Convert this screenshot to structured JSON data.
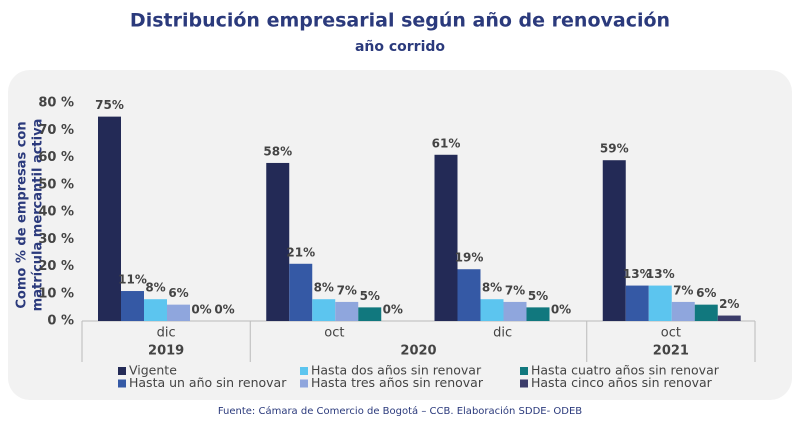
{
  "chart_data": {
    "type": "bar",
    "title": "Distribución empresarial según año de renovación",
    "subtitle": "año corrido",
    "y_label": [
      "Como % de empresas con",
      "matrícula mercantil activa"
    ],
    "groups": [
      {
        "name": "2019",
        "categories": [
          "dic"
        ]
      },
      {
        "name": "2020",
        "categories": [
          "oct",
          "dic"
        ]
      },
      {
        "name": "2021",
        "categories": [
          "oct"
        ]
      }
    ],
    "series": [
      {
        "name": "Vigente",
        "color": "#232a56",
        "values": [
          75,
          58,
          61,
          59
        ],
        "value_labels": [
          "75%",
          "58%",
          "61%",
          "59%"
        ]
      },
      {
        "name": "Hasta un año sin renovar",
        "color": "#3559a5",
        "values": [
          11,
          21,
          19,
          13
        ],
        "value_labels": [
          "11%",
          "21%",
          "19%",
          "13%"
        ]
      },
      {
        "name": "Hasta dos años sin renovar",
        "color": "#5cc5ef",
        "values": [
          8,
          8,
          8,
          13
        ],
        "value_labels": [
          "8%",
          "8%",
          "8%",
          "13%"
        ]
      },
      {
        "name": "Hasta tres años sin renovar",
        "color": "#8fa6dd",
        "values": [
          6,
          7,
          7,
          7
        ],
        "value_labels": [
          "6%",
          "7%",
          "7%",
          "7%"
        ]
      },
      {
        "name": "Hasta cuatro años sin renovar",
        "color": "#11787e",
        "values": [
          0,
          5,
          5,
          6
        ],
        "value_labels": [
          "0%",
          "5%",
          "5%",
          "6%"
        ]
      },
      {
        "name": "Hasta cinco años sin renovar",
        "color": "#3b3c6a",
        "values": [
          0,
          0,
          0,
          2
        ],
        "value_labels": [
          "0%",
          "0%",
          "0%",
          "2%"
        ]
      }
    ],
    "ylim": [
      0,
      80
    ],
    "yticks": [
      {
        "value": 0,
        "label": "0 %"
      },
      {
        "value": 10,
        "label": "10 %"
      },
      {
        "value": 20,
        "label": "20 %"
      },
      {
        "value": 30,
        "label": "30 %"
      },
      {
        "value": 40,
        "label": "40 %"
      },
      {
        "value": 50,
        "label": "50 %"
      },
      {
        "value": 60,
        "label": "60 %"
      },
      {
        "value": 70,
        "label": "70 %"
      },
      {
        "value": 80,
        "label": "80 %"
      }
    ],
    "grid": false,
    "source": "Fuente: Cámara de Comercio de Bogotá – CCB. Elaboración SDDE- ODEB"
  }
}
